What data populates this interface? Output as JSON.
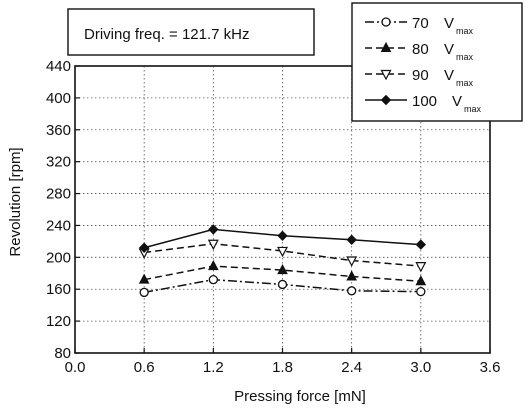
{
  "chart_data": {
    "type": "line",
    "annotation": "Driving freq. = 121.7 kHz",
    "xlabel": "Pressing force  [mN]",
    "ylabel": "Revolution [rpm]",
    "xlim": [
      0.0,
      3.6
    ],
    "ylim": [
      80,
      440
    ],
    "xticks": [
      "0.0",
      "0.6",
      "1.2",
      "1.8",
      "2.4",
      "3.0",
      "3.6"
    ],
    "yticks": [
      "80",
      "120",
      "160",
      "200",
      "240",
      "280",
      "320",
      "360",
      "400",
      "440"
    ],
    "x": [
      0.6,
      1.2,
      1.8,
      2.4,
      3.0
    ],
    "grid": true,
    "legend_position": "top-right",
    "series": [
      {
        "label": "70",
        "label_unit": "V",
        "label_sub": "max",
        "marker": "circle-open",
        "line": "dashdot",
        "values": [
          156,
          172,
          166,
          158,
          157
        ]
      },
      {
        "label": "80",
        "label_unit": "V",
        "label_sub": "max",
        "marker": "triangle-up-filled",
        "line": "dashed",
        "values": [
          172,
          189,
          184,
          176,
          170
        ]
      },
      {
        "label": "90",
        "label_unit": "V",
        "label_sub": "max",
        "marker": "triangle-down-open",
        "line": "dashed",
        "values": [
          206,
          217,
          208,
          196,
          189
        ]
      },
      {
        "label": "100",
        "label_unit": "V",
        "label_sub": "max",
        "marker": "diamond-filled",
        "line": "solid",
        "values": [
          212,
          235,
          227,
          222,
          216
        ]
      }
    ]
  }
}
